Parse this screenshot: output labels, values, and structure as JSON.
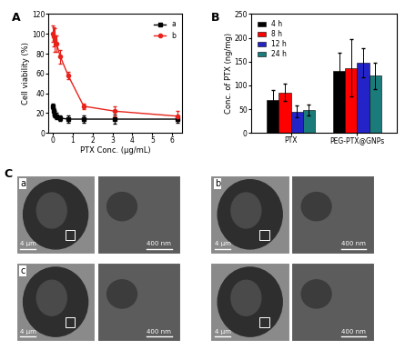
{
  "chart_data": [
    {
      "panel": "A",
      "type": "line",
      "x_label": "PTX Conc. (μg/mL)",
      "y_label": "Cell viability (%)",
      "xlim": [
        -0.2,
        6.5
      ],
      "xticks": [
        0,
        1,
        2,
        3,
        4,
        5,
        6
      ],
      "ylim": [
        0,
        120
      ],
      "yticks": [
        0,
        20,
        40,
        60,
        80,
        100,
        120
      ],
      "legend": "upper right",
      "series": [
        {
          "name": "a",
          "color": "#000000",
          "marker": "square",
          "x": [
            0.01,
            0.05,
            0.1,
            0.2,
            0.39,
            0.78,
            1.56,
            3.13,
            6.25
          ],
          "values": [
            27,
            22,
            19,
            17,
            15,
            14,
            14,
            14,
            14
          ],
          "errors": [
            3,
            3,
            3,
            3,
            3,
            4,
            4,
            5,
            4
          ]
        },
        {
          "name": "b",
          "color": "#e8221b",
          "marker": "circle",
          "x": [
            0.01,
            0.05,
            0.1,
            0.2,
            0.39,
            0.78,
            1.56,
            3.13,
            6.25
          ],
          "values": [
            100,
            97,
            94,
            90,
            77,
            58,
            27,
            22,
            17
          ],
          "errors": [
            8,
            10,
            12,
            8,
            7,
            4,
            3,
            5,
            5
          ]
        }
      ]
    },
    {
      "panel": "B",
      "type": "bar",
      "y_label": "Conc. of PTX (ng/mg)",
      "categories": [
        "PTX",
        "PEG-PTX@GNPs"
      ],
      "ylim": [
        0,
        250
      ],
      "yticks": [
        0,
        50,
        100,
        150,
        200,
        250
      ],
      "legend": "upper left",
      "series": [
        {
          "name": "4 h",
          "color": "#000000",
          "values": [
            70,
            130
          ],
          "errors": [
            20,
            38
          ]
        },
        {
          "name": "8 h",
          "color": "#ff0000",
          "values": [
            85,
            137
          ],
          "errors": [
            18,
            60
          ]
        },
        {
          "name": "12 h",
          "color": "#2323c8",
          "values": [
            45,
            148
          ],
          "errors": [
            12,
            30
          ]
        },
        {
          "name": "24 h",
          "color": "#1b7a7a",
          "values": [
            48,
            120
          ],
          "errors": [
            12,
            28
          ]
        }
      ]
    }
  ],
  "images": {
    "panel": "C",
    "subpanels": [
      {
        "label": "a",
        "scale_bars": [
          "4 µm",
          "400 nm"
        ]
      },
      {
        "label": "b",
        "scale_bars": [
          "4 µm",
          "400 nm"
        ]
      },
      {
        "label": "c",
        "scale_bars": [
          "4 µm",
          "400 nm"
        ]
      },
      {
        "scale_bars": [
          "4 µm",
          "400 nm"
        ]
      }
    ]
  }
}
